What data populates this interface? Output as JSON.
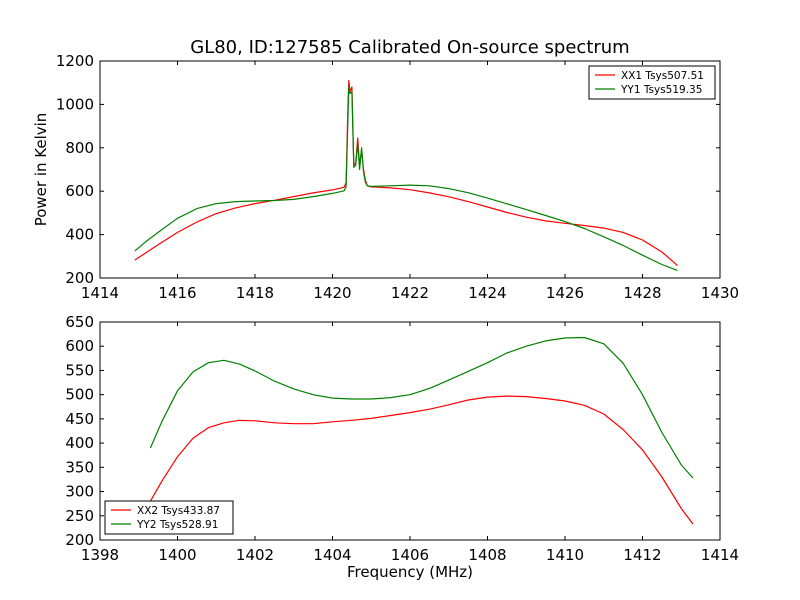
{
  "title": "GL80, ID:127585 Calibrated On-source spectrum",
  "colors": {
    "red": "#ff0000",
    "green": "#008000"
  },
  "chart_data": [
    {
      "type": "line",
      "ylabel": "Power in Kelvin",
      "xlabel": "",
      "xlim": [
        1414,
        1430
      ],
      "ylim": [
        200,
        1200
      ],
      "xticks": [
        "1414",
        "1416",
        "1418",
        "1420",
        "1422",
        "1424",
        "1426",
        "1428",
        "1430"
      ],
      "yticks": [
        "200",
        "400",
        "600",
        "800",
        "1000",
        "1200"
      ],
      "legend_position": "top-right",
      "series": [
        {
          "name": "XX1 Tsys507.51",
          "color": "#ff0000",
          "x": [
            1414.9,
            1415.2,
            1415.5,
            1416.0,
            1416.5,
            1417.0,
            1417.5,
            1418.0,
            1418.5,
            1419.0,
            1419.5,
            1420.0,
            1420.3,
            1420.35,
            1420.4,
            1420.42,
            1420.45,
            1420.5,
            1420.55,
            1420.6,
            1420.65,
            1420.7,
            1420.75,
            1420.8,
            1420.85,
            1420.9,
            1421.0,
            1421.5,
            1422.0,
            1422.5,
            1423.0,
            1423.5,
            1424.0,
            1424.5,
            1425.0,
            1425.5,
            1426.0,
            1426.5,
            1427.0,
            1427.5,
            1428.0,
            1428.5,
            1428.9
          ],
          "y": [
            283,
            318,
            353,
            410,
            458,
            497,
            523,
            543,
            558,
            575,
            592,
            606,
            618,
            640,
            1000,
            1110,
            1060,
            1080,
            720,
            730,
            845,
            720,
            790,
            700,
            650,
            625,
            620,
            615,
            607,
            592,
            574,
            552,
            527,
            502,
            480,
            463,
            452,
            442,
            430,
            410,
            375,
            320,
            258
          ]
        },
        {
          "name": "YY1 Tsys519.35",
          "color": "#008000",
          "x": [
            1414.9,
            1415.2,
            1415.5,
            1416.0,
            1416.5,
            1417.0,
            1417.5,
            1418.0,
            1418.5,
            1419.0,
            1419.5,
            1420.0,
            1420.3,
            1420.35,
            1420.4,
            1420.42,
            1420.45,
            1420.5,
            1420.55,
            1420.6,
            1420.65,
            1420.7,
            1420.75,
            1420.8,
            1420.85,
            1420.9,
            1421.0,
            1421.5,
            1422.0,
            1422.5,
            1423.0,
            1423.5,
            1424.0,
            1424.5,
            1425.0,
            1425.5,
            1426.0,
            1426.5,
            1427.0,
            1427.5,
            1428.0,
            1428.5,
            1428.9
          ],
          "y": [
            325,
            370,
            410,
            475,
            520,
            543,
            552,
            555,
            557,
            562,
            575,
            590,
            602,
            620,
            950,
            1080,
            1050,
            1060,
            710,
            720,
            820,
            700,
            800,
            690,
            640,
            625,
            622,
            625,
            628,
            625,
            612,
            593,
            568,
            542,
            515,
            488,
            460,
            428,
            390,
            350,
            305,
            262,
            235
          ]
        }
      ]
    },
    {
      "type": "line",
      "ylabel": "",
      "xlabel": "Frequency (MHz)",
      "xlim": [
        1398,
        1414
      ],
      "ylim": [
        200,
        650
      ],
      "xticks": [
        "1398",
        "1400",
        "1402",
        "1404",
        "1406",
        "1408",
        "1410",
        "1412",
        "1414"
      ],
      "yticks": [
        "200",
        "250",
        "300",
        "350",
        "400",
        "450",
        "500",
        "550",
        "600",
        "650"
      ],
      "legend_position": "bottom-left",
      "series": [
        {
          "name": "XX2 Tsys433.87",
          "color": "#ff0000",
          "x": [
            1399.3,
            1399.6,
            1400.0,
            1400.4,
            1400.8,
            1401.2,
            1401.6,
            1402.0,
            1402.5,
            1403.0,
            1403.5,
            1404.0,
            1404.5,
            1405.0,
            1405.5,
            1406.0,
            1406.5,
            1407.0,
            1407.5,
            1408.0,
            1408.5,
            1409.0,
            1409.5,
            1410.0,
            1410.5,
            1411.0,
            1411.5,
            1412.0,
            1412.5,
            1413.0,
            1413.3
          ],
          "y": [
            280,
            322,
            372,
            410,
            432,
            442,
            447,
            446,
            442,
            440,
            440,
            444,
            447,
            451,
            457,
            463,
            470,
            479,
            489,
            495,
            497,
            496,
            492,
            487,
            478,
            460,
            428,
            386,
            330,
            265,
            233
          ]
        },
        {
          "name": "YY2 Tsys528.91",
          "color": "#008000",
          "x": [
            1399.3,
            1399.6,
            1400.0,
            1400.4,
            1400.8,
            1401.2,
            1401.6,
            1402.0,
            1402.5,
            1403.0,
            1403.5,
            1404.0,
            1404.5,
            1405.0,
            1405.5,
            1406.0,
            1406.5,
            1407.0,
            1407.5,
            1408.0,
            1408.5,
            1409.0,
            1409.5,
            1410.0,
            1410.5,
            1411.0,
            1411.5,
            1412.0,
            1412.5,
            1413.0,
            1413.3
          ],
          "y": [
            390,
            445,
            508,
            547,
            566,
            571,
            563,
            549,
            528,
            512,
            500,
            493,
            491,
            491,
            494,
            500,
            513,
            530,
            548,
            566,
            586,
            600,
            611,
            617,
            618,
            605,
            565,
            500,
            422,
            355,
            328
          ]
        }
      ]
    }
  ]
}
